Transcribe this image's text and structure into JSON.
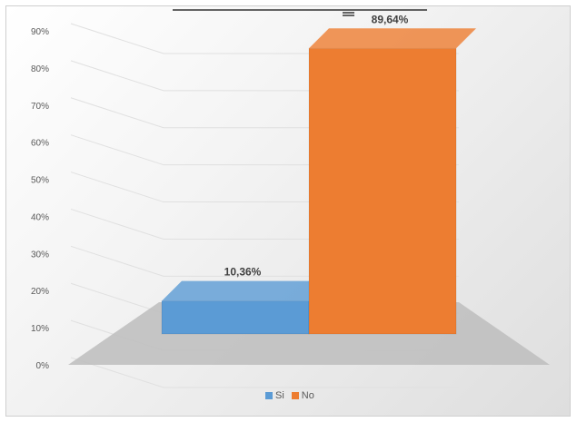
{
  "chart_data": {
    "type": "bar",
    "title": "",
    "xlabel": "",
    "ylabel": "",
    "ylim": [
      0,
      90
    ],
    "y_ticks": [
      "0%",
      "10%",
      "20%",
      "30%",
      "40%",
      "50%",
      "60%",
      "70%",
      "80%",
      "90%"
    ],
    "categories": [
      "Si",
      "No"
    ],
    "values": [
      10.36,
      89.64
    ],
    "data_labels": [
      "10,36%",
      "89,64%"
    ],
    "colors": [
      "#5b9bd5",
      "#ed7d31"
    ],
    "grid": true,
    "legend": "bottom",
    "legend_entries": [
      "Si",
      "No"
    ],
    "perspective": "3d"
  }
}
